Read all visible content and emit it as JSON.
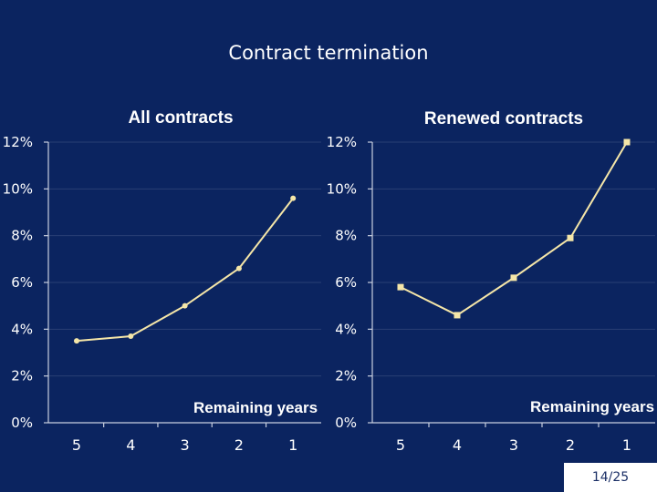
{
  "slide": {
    "title": "Contract termination",
    "page_number": "14/25"
  },
  "colors": {
    "background": "#0b2460",
    "series": "#f5e6a8",
    "gridline": "#2a3f74",
    "axis": "#c8cfdf",
    "text": "#ffffff"
  },
  "chart_data": [
    {
      "type": "line",
      "title": "All contracts",
      "xlabel": "Remaining years",
      "ylabel": "",
      "categories": [
        "5",
        "4",
        "3",
        "2",
        "1"
      ],
      "series": [
        {
          "values": [
            3.5,
            3.7,
            5.0,
            6.6,
            9.6
          ]
        }
      ],
      "ylim": [
        0,
        12
      ],
      "yticks": [
        "0%",
        "2%",
        "4%",
        "6%",
        "8%",
        "10%",
        "12%"
      ],
      "marker": "circle",
      "grid": true,
      "legend": "none"
    },
    {
      "type": "line",
      "title": "Renewed contracts",
      "xlabel": "Remaining years",
      "ylabel": "",
      "categories": [
        "5",
        "4",
        "3",
        "2",
        "1"
      ],
      "series": [
        {
          "values": [
            5.8,
            4.6,
            6.2,
            7.9,
            12.0
          ]
        }
      ],
      "ylim": [
        0,
        12
      ],
      "yticks": [
        "0%",
        "2%",
        "4%",
        "6%",
        "8%",
        "10%",
        "12%"
      ],
      "marker": "square",
      "grid": true,
      "legend": "none"
    }
  ]
}
